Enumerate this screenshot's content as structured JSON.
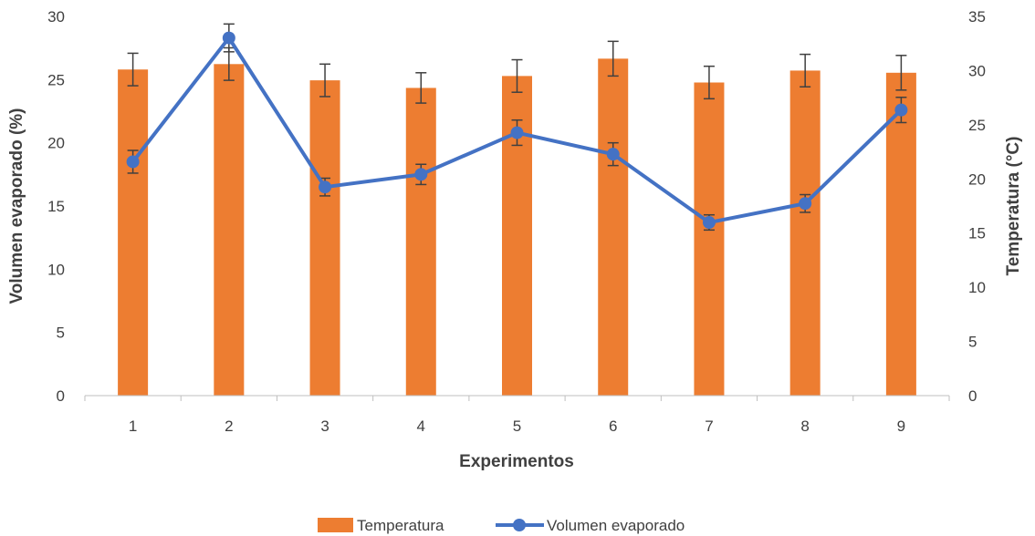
{
  "chart_data": {
    "type": "bar",
    "categories": [
      "1",
      "2",
      "3",
      "4",
      "5",
      "6",
      "7",
      "8",
      "9"
    ],
    "xlabel": "Experimentos",
    "ylabel": "Volumen evaporado (%)",
    "y2label": "Temperatura (°C)",
    "ylim": [
      0,
      30
    ],
    "y2lim": [
      0,
      35
    ],
    "yticks": [
      "0",
      "5",
      "10",
      "15",
      "20",
      "25",
      "30"
    ],
    "y2ticks": [
      "0",
      "5",
      "10",
      "15",
      "20",
      "25",
      "30",
      "35"
    ],
    "grid": false,
    "legend_position": "bottom",
    "series": [
      {
        "name": "Temperatura",
        "type": "bar",
        "axis": "right",
        "color": "#ED7D31",
        "values": [
          30.1,
          30.6,
          29.1,
          28.4,
          29.5,
          31.1,
          28.9,
          30.0,
          29.8
        ],
        "error": [
          1.5,
          1.5,
          1.5,
          1.4,
          1.5,
          1.6,
          1.5,
          1.5,
          1.6
        ]
      },
      {
        "name": "Volumen evaporado",
        "type": "line",
        "axis": "left",
        "color": "#4472C4",
        "values": [
          18.5,
          28.3,
          16.5,
          17.5,
          20.8,
          19.1,
          13.7,
          15.2,
          22.6
        ],
        "error": [
          0.9,
          1.1,
          0.7,
          0.8,
          1.0,
          0.9,
          0.6,
          0.7,
          1.0
        ]
      }
    ]
  }
}
